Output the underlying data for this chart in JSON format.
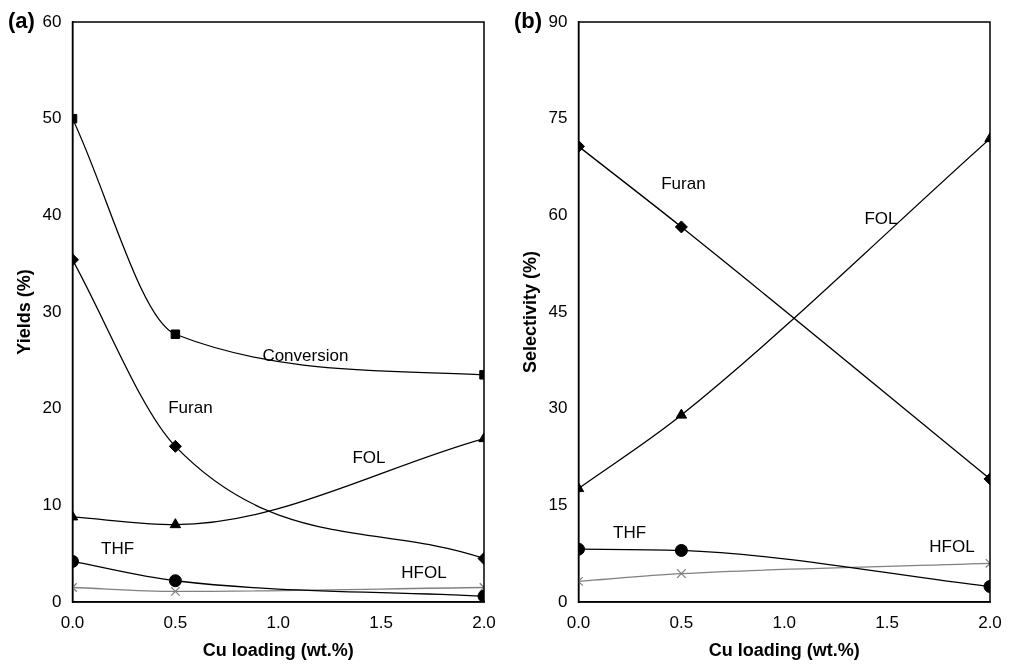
{
  "chart_data": [
    {
      "type": "line",
      "title": "(a)",
      "xlabel": "Cu loading (wt.%)",
      "ylabel": "Yields (%)",
      "x": [
        0,
        0.5,
        2
      ],
      "xlim": [
        0,
        2
      ],
      "xticks": [
        {
          "value": 0,
          "label": "0.0"
        },
        {
          "value": 0.5,
          "label": "0.5"
        },
        {
          "value": 1,
          "label": "1.0"
        },
        {
          "value": 1.5,
          "label": "1.5"
        },
        {
          "value": 2,
          "label": "2.0"
        }
      ],
      "ylim": [
        0,
        60
      ],
      "yticks": [
        0,
        10,
        20,
        30,
        40,
        50,
        60
      ],
      "grid": false,
      "legend": false,
      "series": [
        {
          "name": "Conversion",
          "color": "#000000",
          "marker": "square",
          "values": [
            50.0,
            27.7,
            23.5
          ]
        },
        {
          "name": "Furan",
          "color": "#000000",
          "marker": "diamond",
          "values": [
            35.4,
            16.1,
            4.5
          ]
        },
        {
          "name": "FOL",
          "color": "#000000",
          "marker": "triangle",
          "values": [
            8.8,
            8.0,
            16.9
          ]
        },
        {
          "name": "THF",
          "color": "#000000",
          "marker": "circle",
          "values": [
            4.2,
            2.2,
            0.6
          ]
        },
        {
          "name": "HFOL",
          "color": "#808080",
          "marker": "cross",
          "values": [
            1.5,
            1.1,
            1.5
          ]
        }
      ]
    },
    {
      "type": "line",
      "title": "(b)",
      "xlabel": "Cu loading (wt.%)",
      "ylabel": "Selectivity (%)",
      "x": [
        0,
        0.5,
        2
      ],
      "xlim": [
        0,
        2
      ],
      "xticks": [
        {
          "value": 0,
          "label": "0.0"
        },
        {
          "value": 0.5,
          "label": "0.5"
        },
        {
          "value": 1,
          "label": "1.0"
        },
        {
          "value": 1.5,
          "label": "1.5"
        },
        {
          "value": 2,
          "label": "2.0"
        }
      ],
      "ylim": [
        0,
        90
      ],
      "yticks": [
        0,
        15,
        30,
        45,
        60,
        75,
        90
      ],
      "grid": false,
      "legend": false,
      "series": [
        {
          "name": "Furan",
          "color": "#000000",
          "marker": "diamond",
          "values": [
            70.7,
            58.2,
            19.1
          ]
        },
        {
          "name": "FOL",
          "color": "#000000",
          "marker": "triangle",
          "values": [
            17.6,
            29.0,
            71.9
          ]
        },
        {
          "name": "THF",
          "color": "#000000",
          "marker": "circle",
          "values": [
            8.2,
            8.0,
            2.4
          ]
        },
        {
          "name": "HFOL",
          "color": "#808080",
          "marker": "cross",
          "values": [
            3.2,
            4.4,
            6.0
          ]
        }
      ]
    }
  ]
}
